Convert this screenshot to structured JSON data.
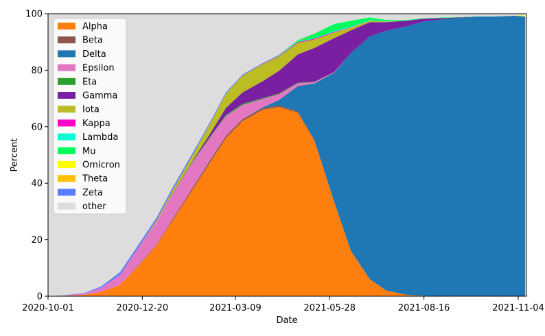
{
  "chart_data": {
    "type": "area",
    "subtype": "stacked-100",
    "x_type": "date",
    "x_start": "2020-10-01",
    "x_end": "2021-11-11",
    "xlabel": "Date",
    "ylabel": "Percent",
    "ylim": [
      0,
      100
    ],
    "x_ticks": [
      "2020-10-01",
      "2020-12-20",
      "2021-03-09",
      "2021-05-28",
      "2021-08-16",
      "2021-11-04"
    ],
    "y_ticks": [
      0,
      20,
      40,
      60,
      80,
      100
    ],
    "grid": false,
    "legend_position": "top-left",
    "stack_order": [
      "Alpha",
      "Beta",
      "Delta",
      "Epsilon",
      "Eta",
      "Gamma",
      "Iota",
      "Kappa",
      "Lambda",
      "Mu",
      "Omicron",
      "Theta",
      "Zeta",
      "other"
    ],
    "legend": [
      {
        "name": "Alpha",
        "color": "#ff7f0e"
      },
      {
        "name": "Beta",
        "color": "#8c564b"
      },
      {
        "name": "Delta",
        "color": "#1f77b4"
      },
      {
        "name": "Epsilon",
        "color": "#e377c2"
      },
      {
        "name": "Eta",
        "color": "#2ca02c"
      },
      {
        "name": "Gamma",
        "color": "#7b1fa2"
      },
      {
        "name": "Iota",
        "color": "#bcbd22"
      },
      {
        "name": "Kappa",
        "color": "#ff00c8"
      },
      {
        "name": "Lambda",
        "color": "#00ffd5"
      },
      {
        "name": "Mu",
        "color": "#00ff5a"
      },
      {
        "name": "Omicron",
        "color": "#ffff00"
      },
      {
        "name": "Theta",
        "color": "#ffc107"
      },
      {
        "name": "Zeta",
        "color": "#5b7cff"
      },
      {
        "name": "other",
        "color": "#dddddd"
      }
    ],
    "x": [
      "2020-10-01",
      "2020-10-15",
      "2020-11-01",
      "2020-11-15",
      "2020-12-01",
      "2020-12-15",
      "2021-01-01",
      "2021-01-15",
      "2021-02-01",
      "2021-02-15",
      "2021-03-01",
      "2021-03-15",
      "2021-04-01",
      "2021-04-15",
      "2021-05-01",
      "2021-05-15",
      "2021-06-01",
      "2021-06-15",
      "2021-07-01",
      "2021-07-15",
      "2021-08-01",
      "2021-08-15",
      "2021-09-01",
      "2021-09-15",
      "2021-10-01",
      "2021-10-15",
      "2021-11-01",
      "2021-11-10"
    ],
    "series": [
      {
        "name": "Alpha",
        "values": [
          0,
          0.2,
          0.5,
          1.5,
          4,
          10,
          18,
          27,
          38,
          47,
          56,
          62,
          66,
          67,
          65,
          55,
          33,
          16,
          6,
          2,
          0.5,
          0.2,
          0,
          0,
          0,
          0,
          0,
          0
        ]
      },
      {
        "name": "Beta",
        "values": [
          0,
          0,
          0,
          0,
          0,
          0.2,
          0.3,
          0.5,
          0.7,
          0.8,
          0.8,
          0.7,
          0.6,
          0.5,
          0.4,
          0.3,
          0.2,
          0.1,
          0,
          0,
          0,
          0,
          0,
          0,
          0,
          0,
          0,
          0
        ]
      },
      {
        "name": "Delta",
        "values": [
          0,
          0,
          0,
          0,
          0,
          0,
          0,
          0,
          0,
          0,
          0,
          0,
          0.2,
          2,
          9,
          20,
          46,
          70,
          86,
          92,
          95,
          97,
          98,
          98.5,
          99,
          99,
          99.3,
          99
        ]
      },
      {
        "name": "Epsilon",
        "values": [
          0,
          0.1,
          0.5,
          1.5,
          3.5,
          6,
          8,
          9,
          9,
          8,
          7,
          5,
          3,
          2,
          1,
          0.5,
          0.2,
          0,
          0,
          0,
          0,
          0,
          0,
          0,
          0,
          0,
          0,
          0
        ]
      },
      {
        "name": "Eta",
        "values": [
          0,
          0,
          0,
          0,
          0,
          0,
          0,
          0.2,
          0.3,
          0.4,
          0.4,
          0.4,
          0.3,
          0.3,
          0.2,
          0.1,
          0,
          0,
          0,
          0,
          0,
          0,
          0,
          0,
          0,
          0,
          0,
          0
        ]
      },
      {
        "name": "Gamma",
        "values": [
          0,
          0,
          0,
          0,
          0,
          0,
          0,
          0,
          0.2,
          1,
          2.5,
          4,
          6,
          8,
          10,
          12,
          12,
          8,
          5,
          3,
          2,
          1,
          0.5,
          0.2,
          0,
          0,
          0,
          0
        ]
      },
      {
        "name": "Iota",
        "values": [
          0,
          0,
          0,
          0,
          0,
          0,
          0.5,
          1,
          2,
          3.5,
          5,
          6,
          6,
          5,
          4,
          3,
          2,
          1,
          0.5,
          0.2,
          0,
          0,
          0,
          0,
          0,
          0,
          0,
          0
        ]
      },
      {
        "name": "Kappa",
        "values": [
          0,
          0,
          0,
          0,
          0,
          0,
          0,
          0,
          0,
          0,
          0,
          0,
          0.1,
          0.2,
          0.3,
          0.3,
          0.2,
          0.1,
          0,
          0,
          0,
          0,
          0,
          0,
          0,
          0,
          0,
          0
        ]
      },
      {
        "name": "Lambda",
        "values": [
          0,
          0,
          0,
          0,
          0,
          0,
          0,
          0,
          0,
          0,
          0,
          0,
          0,
          0,
          0.1,
          0.2,
          0.3,
          0.3,
          0.2,
          0.1,
          0,
          0,
          0,
          0,
          0,
          0,
          0,
          0
        ]
      },
      {
        "name": "Mu",
        "values": [
          0,
          0,
          0,
          0,
          0,
          0,
          0,
          0,
          0,
          0,
          0,
          0,
          0,
          0.2,
          0.5,
          1.5,
          2.5,
          2,
          1,
          0.5,
          0.3,
          0.2,
          0.2,
          0.1,
          0.1,
          0,
          0,
          0
        ]
      },
      {
        "name": "Omicron",
        "values": [
          0,
          0,
          0,
          0,
          0,
          0,
          0,
          0,
          0,
          0,
          0,
          0,
          0,
          0,
          0,
          0,
          0,
          0,
          0,
          0,
          0,
          0,
          0,
          0,
          0,
          0,
          0,
          0.5
        ]
      },
      {
        "name": "Theta",
        "values": [
          0,
          0,
          0,
          0,
          0,
          0,
          0,
          0,
          0,
          0,
          0,
          0,
          0,
          0.1,
          0.1,
          0.1,
          0,
          0,
          0,
          0,
          0,
          0,
          0,
          0,
          0,
          0,
          0,
          0
        ]
      },
      {
        "name": "Zeta",
        "values": [
          0,
          0.1,
          0.2,
          0.5,
          1,
          1,
          1,
          1,
          0.8,
          0.6,
          0.5,
          0.4,
          0.3,
          0.2,
          0.1,
          0.1,
          0,
          0,
          0,
          0,
          0,
          0,
          0,
          0,
          0,
          0,
          0,
          0
        ]
      },
      {
        "name": "other",
        "values": [
          100,
          99.6,
          98.8,
          96.5,
          91.5,
          82.8,
          72.2,
          61.3,
          49,
          38.7,
          27.8,
          21.5,
          17.6,
          14.5,
          9.3,
          6.9,
          3.6,
          2.5,
          1.3,
          2.2,
          2.2,
          1.6,
          1.3,
          1.2,
          0.9,
          1,
          0.7,
          0.5
        ]
      }
    ]
  }
}
